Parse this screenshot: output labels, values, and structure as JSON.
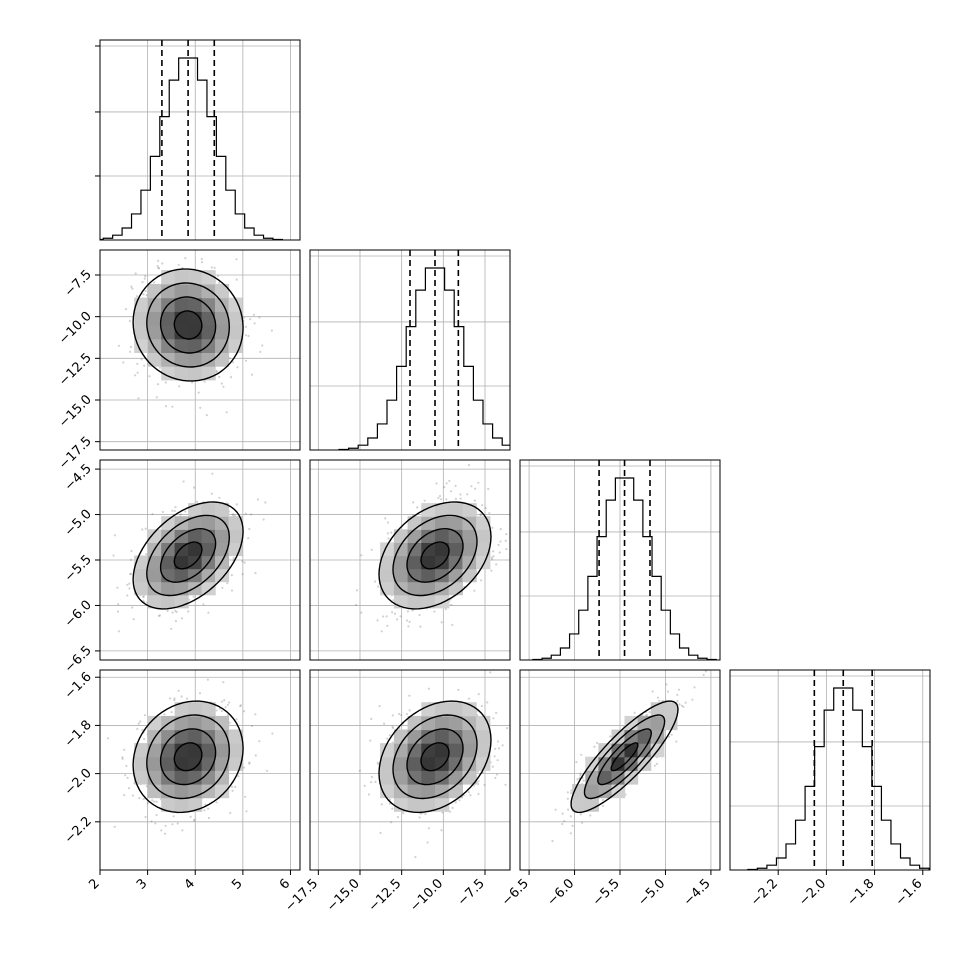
{
  "chart_data": {
    "type": "corner",
    "parameters": [
      {
        "mean": 3.85,
        "sd": 0.55,
        "range": [
          2.0,
          6.2
        ],
        "ticks": [
          2,
          3,
          4,
          5,
          6
        ],
        "tick_labels": [
          "2",
          "3",
          "4",
          "5",
          "6"
        ],
        "quantiles": [
          3.3,
          3.85,
          4.4
        ]
      },
      {
        "mean": -10.5,
        "sd": 1.6,
        "range": [
          -18.0,
          -6.0
        ],
        "ticks": [
          -17.5,
          -15.0,
          -12.5,
          -10.0,
          -7.5
        ],
        "tick_labels": [
          "−17.5",
          "−15.0",
          "−12.5",
          "−10.0",
          "−7.5"
        ],
        "quantiles": [
          -12.0,
          -10.5,
          -9.1
        ]
      },
      {
        "mean": -5.45,
        "sd": 0.28,
        "range": [
          -6.6,
          -4.4
        ],
        "ticks": [
          -6.5,
          -6.0,
          -5.5,
          -5.0,
          -4.5
        ],
        "tick_labels": [
          "−6.5",
          "−6.0",
          "−5.5",
          "−5.0",
          "−4.5"
        ],
        "quantiles": [
          -5.73,
          -5.45,
          -5.17
        ]
      },
      {
        "mean": -1.93,
        "sd": 0.11,
        "range": [
          -2.4,
          -1.57
        ],
        "ticks": [
          -2.2,
          -2.0,
          -1.8,
          -1.6
        ],
        "tick_labels": [
          "−2.2",
          "−2.0",
          "−1.8",
          "−1.6"
        ],
        "quantiles": [
          -2.05,
          -1.93,
          -1.81
        ]
      }
    ],
    "pair_correlations": {
      "1-0": -0.05,
      "2-0": 0.45,
      "2-1": 0.35,
      "3-0": 0.15,
      "3-1": 0.3,
      "3-2": 0.85
    },
    "histogram_bins": 20,
    "contour_levels_sigma": [
      0.5,
      1.0,
      1.5,
      2.0
    ],
    "grid": true
  }
}
